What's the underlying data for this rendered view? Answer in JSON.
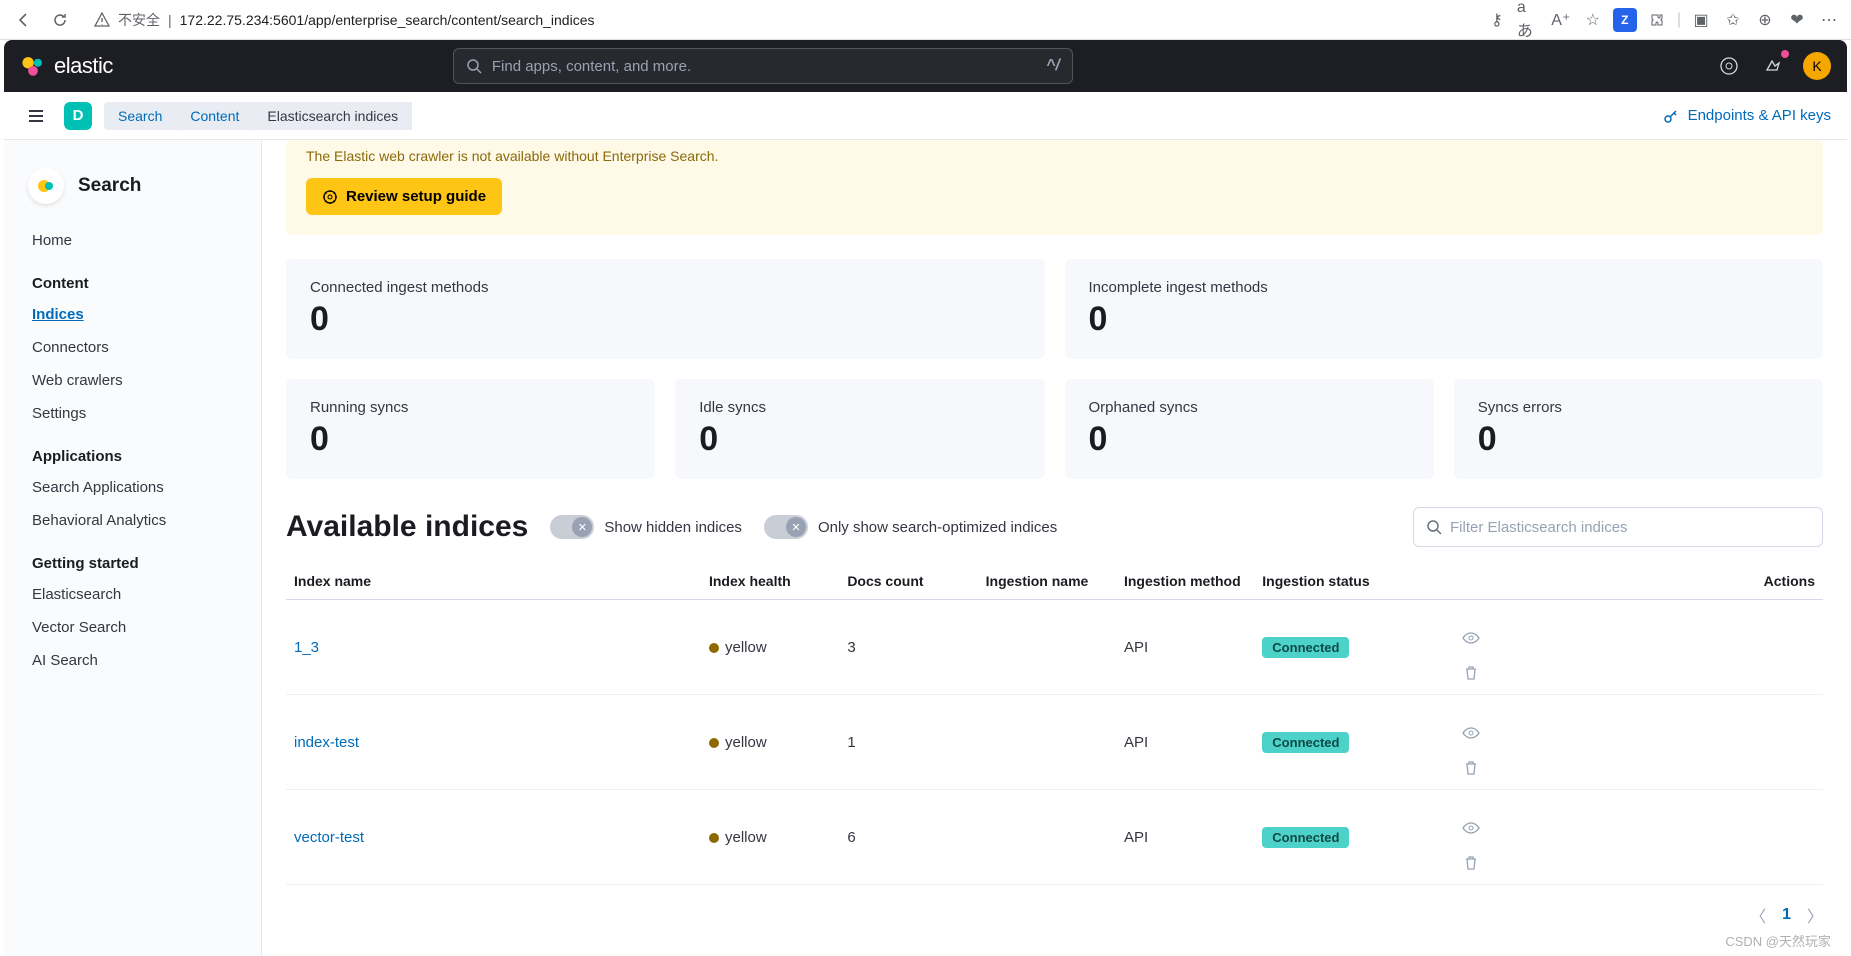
{
  "browser": {
    "insecure_label": "不安全",
    "url": "172.22.75.234:5601/app/enterprise_search/content/search_indices"
  },
  "header": {
    "brand": "elastic",
    "search_placeholder": "Find apps, content, and more.",
    "shortcut": "^/",
    "avatar": "K"
  },
  "subheader": {
    "space": "D",
    "crumbs": {
      "search": "Search",
      "content": "Content",
      "current": "Elasticsearch indices"
    },
    "endpoints": "Endpoints & API keys"
  },
  "sidebar": {
    "title": "Search",
    "home": "Home",
    "h_content": "Content",
    "items_content": {
      "indices": "Indices",
      "connectors": "Connectors",
      "crawlers": "Web crawlers",
      "settings": "Settings"
    },
    "h_apps": "Applications",
    "items_apps": {
      "search_apps": "Search Applications",
      "behavioral": "Behavioral Analytics"
    },
    "h_started": "Getting started",
    "items_started": {
      "es": "Elasticsearch",
      "vector": "Vector Search",
      "ai": "AI Search"
    }
  },
  "callout": {
    "text": "The Elastic web crawler is not available without Enterprise Search.",
    "button": "Review setup guide"
  },
  "stats_top": {
    "connected": {
      "label": "Connected ingest methods",
      "value": "0"
    },
    "incomplete": {
      "label": "Incomplete ingest methods",
      "value": "0"
    }
  },
  "stats_bottom": {
    "running": {
      "label": "Running syncs",
      "value": "0"
    },
    "idle": {
      "label": "Idle syncs",
      "value": "0"
    },
    "orphaned": {
      "label": "Orphaned syncs",
      "value": "0"
    },
    "errors": {
      "label": "Syncs errors",
      "value": "0"
    }
  },
  "indices": {
    "title": "Available indices",
    "toggle_hidden": "Show hidden indices",
    "toggle_optimized": "Only show search-optimized indices",
    "filter_placeholder": "Filter Elasticsearch indices",
    "cols": {
      "name": "Index name",
      "health": "Index health",
      "docs": "Docs count",
      "ing_name": "Ingestion name",
      "ing_method": "Ingestion method",
      "ing_status": "Ingestion status",
      "actions": "Actions"
    },
    "rows": [
      {
        "name": "1_3",
        "health": "yellow",
        "docs": "3",
        "ing_name": "",
        "ing_method": "API",
        "ing_status": "Connected"
      },
      {
        "name": "index-test",
        "health": "yellow",
        "docs": "1",
        "ing_name": "",
        "ing_method": "API",
        "ing_status": "Connected"
      },
      {
        "name": "vector-test",
        "health": "yellow",
        "docs": "6",
        "ing_name": "",
        "ing_method": "API",
        "ing_status": "Connected"
      }
    ],
    "page": "1"
  },
  "watermark": "CSDN @天然玩家",
  "colors": {
    "header_bg": "#1d1e24",
    "primary_link": "#006bb8",
    "panel_bg": "#f7f8fc",
    "callout_bg": "#fff9e8",
    "warn_btn": "#fec514",
    "badge_bg": "#4dd2ca",
    "health_yellow_dot": "#8c6a00",
    "avatar_bg": "#f5a700",
    "space_bg": "#00bfb3"
  }
}
